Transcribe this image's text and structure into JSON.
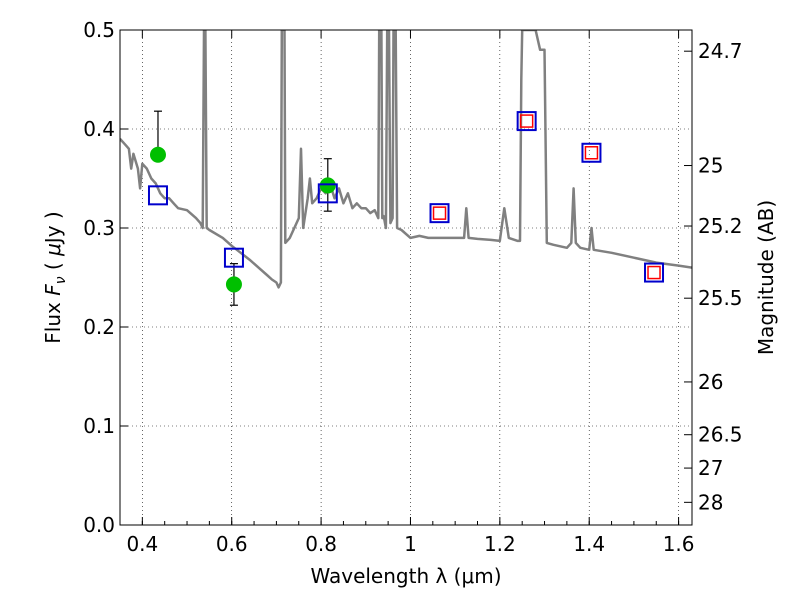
{
  "chart_data": {
    "type": "scatter",
    "xlabel": "Wavelength  λ (μm)",
    "ylabel": "Flux  F_ν ( μJy )",
    "ylabel_parts": {
      "pre": "Flux  ",
      "sym": "F",
      "sub": "ν",
      "mid": "  ( ",
      "unit_sym": "μ",
      "post": "Jy )"
    },
    "y2label": "Magnitude (AB)",
    "xlim": [
      0.35,
      1.63
    ],
    "ylim": [
      0.0,
      0.5
    ],
    "grid": true,
    "x_ticks": [
      0.4,
      0.6,
      0.8,
      1.0,
      1.2,
      1.4,
      1.6
    ],
    "x_tick_labels": [
      "0.4",
      "0.6",
      "0.8",
      "1",
      "1.2",
      "1.4",
      "1.6"
    ],
    "y_ticks": [
      0.0,
      0.1,
      0.2,
      0.3,
      0.4,
      0.5
    ],
    "y_tick_labels": [
      "0.0",
      "0.1",
      "0.2",
      "0.3",
      "0.4",
      "0.5"
    ],
    "y2_ticks": [
      {
        "label": "24.7",
        "flux": 0.4786
      },
      {
        "label": "25",
        "flux": 0.3631
      },
      {
        "label": "25.2",
        "flux": 0.302
      },
      {
        "label": "25.5",
        "flux": 0.2291
      },
      {
        "label": "26",
        "flux": 0.1445
      },
      {
        "label": "26.5",
        "flux": 0.0912
      },
      {
        "label": "27",
        "flux": 0.0575
      },
      {
        "label": "28",
        "flux": 0.0229
      }
    ],
    "series": [
      {
        "style": "line",
        "color": "#808080",
        "points": [
          [
            0.35,
            0.39
          ],
          [
            0.36,
            0.385
          ],
          [
            0.37,
            0.38
          ],
          [
            0.375,
            0.36
          ],
          [
            0.38,
            0.375
          ],
          [
            0.39,
            0.36
          ],
          [
            0.395,
            0.34
          ],
          [
            0.4,
            0.365
          ],
          [
            0.41,
            0.36
          ],
          [
            0.42,
            0.35
          ],
          [
            0.43,
            0.345
          ],
          [
            0.44,
            0.335
          ],
          [
            0.45,
            0.33
          ],
          [
            0.46,
            0.33
          ],
          [
            0.47,
            0.325
          ],
          [
            0.48,
            0.32
          ],
          [
            0.5,
            0.318
          ],
          [
            0.52,
            0.31
          ],
          [
            0.53,
            0.305
          ],
          [
            0.535,
            0.3
          ],
          [
            0.538,
            0.5
          ],
          [
            0.541,
            0.5
          ],
          [
            0.544,
            0.3
          ],
          [
            0.55,
            0.298
          ],
          [
            0.58,
            0.29
          ],
          [
            0.6,
            0.282
          ],
          [
            0.62,
            0.275
          ],
          [
            0.64,
            0.268
          ],
          [
            0.66,
            0.26
          ],
          [
            0.68,
            0.252
          ],
          [
            0.69,
            0.248
          ],
          [
            0.7,
            0.245
          ],
          [
            0.705,
            0.24
          ],
          [
            0.71,
            0.245
          ],
          [
            0.712,
            0.5
          ],
          [
            0.718,
            0.5
          ],
          [
            0.72,
            0.285
          ],
          [
            0.73,
            0.29
          ],
          [
            0.74,
            0.3
          ],
          [
            0.75,
            0.31
          ],
          [
            0.755,
            0.38
          ],
          [
            0.76,
            0.3
          ],
          [
            0.77,
            0.33
          ],
          [
            0.775,
            0.35
          ],
          [
            0.78,
            0.325
          ],
          [
            0.79,
            0.33
          ],
          [
            0.8,
            0.34
          ],
          [
            0.81,
            0.335
          ],
          [
            0.82,
            0.345
          ],
          [
            0.83,
            0.33
          ],
          [
            0.84,
            0.34
          ],
          [
            0.85,
            0.325
          ],
          [
            0.86,
            0.335
          ],
          [
            0.87,
            0.32
          ],
          [
            0.88,
            0.325
          ],
          [
            0.89,
            0.32
          ],
          [
            0.9,
            0.32
          ],
          [
            0.91,
            0.315
          ],
          [
            0.92,
            0.318
          ],
          [
            0.928,
            0.31
          ],
          [
            0.93,
            0.5
          ],
          [
            0.935,
            0.5
          ],
          [
            0.937,
            0.31
          ],
          [
            0.94,
            0.312
          ],
          [
            0.945,
            0.3
          ],
          [
            0.948,
            0.5
          ],
          [
            0.952,
            0.5
          ],
          [
            0.955,
            0.305
          ],
          [
            0.96,
            0.31
          ],
          [
            0.962,
            0.5
          ],
          [
            0.967,
            0.5
          ],
          [
            0.97,
            0.3
          ],
          [
            0.98,
            0.298
          ],
          [
            1.0,
            0.29
          ],
          [
            1.02,
            0.292
          ],
          [
            1.04,
            0.29
          ],
          [
            1.06,
            0.29
          ],
          [
            1.08,
            0.29
          ],
          [
            1.1,
            0.29
          ],
          [
            1.12,
            0.29
          ],
          [
            1.125,
            0.32
          ],
          [
            1.13,
            0.29
          ],
          [
            1.15,
            0.289
          ],
          [
            1.18,
            0.288
          ],
          [
            1.2,
            0.287
          ],
          [
            1.21,
            0.32
          ],
          [
            1.22,
            0.29
          ],
          [
            1.24,
            0.287
          ],
          [
            1.245,
            0.287
          ],
          [
            1.248,
            0.45
          ],
          [
            1.25,
            0.5
          ],
          [
            1.27,
            0.5
          ],
          [
            1.28,
            0.5
          ],
          [
            1.29,
            0.48
          ],
          [
            1.3,
            0.48
          ],
          [
            1.305,
            0.285
          ],
          [
            1.32,
            0.283
          ],
          [
            1.35,
            0.28
          ],
          [
            1.36,
            0.285
          ],
          [
            1.365,
            0.34
          ],
          [
            1.37,
            0.285
          ],
          [
            1.38,
            0.28
          ],
          [
            1.4,
            0.278
          ],
          [
            1.405,
            0.3
          ],
          [
            1.41,
            0.278
          ],
          [
            1.45,
            0.275
          ],
          [
            1.5,
            0.27
          ],
          [
            1.55,
            0.265
          ],
          [
            1.6,
            0.262
          ],
          [
            1.63,
            0.26
          ]
        ]
      },
      {
        "style": "points",
        "marker": "circle",
        "color": "#00bf00",
        "points": [
          {
            "x": 0.435,
            "y": 0.374,
            "err": [
              0.374,
              0.418
            ]
          },
          {
            "x": 0.605,
            "y": 0.243,
            "err": [
              0.222,
              0.264
            ]
          },
          {
            "x": 0.815,
            "y": 0.343,
            "err": [
              0.317,
              0.37
            ]
          }
        ]
      },
      {
        "style": "points",
        "marker": "square-open",
        "color": "#0000cc",
        "points": [
          {
            "x": 0.435,
            "y": 0.333
          },
          {
            "x": 0.605,
            "y": 0.27
          },
          {
            "x": 0.815,
            "y": 0.335
          },
          {
            "x": 1.065,
            "y": 0.315
          },
          {
            "x": 1.26,
            "y": 0.408
          },
          {
            "x": 1.405,
            "y": 0.376
          },
          {
            "x": 1.545,
            "y": 0.255
          }
        ]
      },
      {
        "style": "points",
        "marker": "square-open-small",
        "color": "#ff0000",
        "points": [
          {
            "x": 1.065,
            "y": 0.315
          },
          {
            "x": 1.26,
            "y": 0.408
          },
          {
            "x": 1.405,
            "y": 0.376
          },
          {
            "x": 1.545,
            "y": 0.255
          }
        ]
      }
    ]
  }
}
